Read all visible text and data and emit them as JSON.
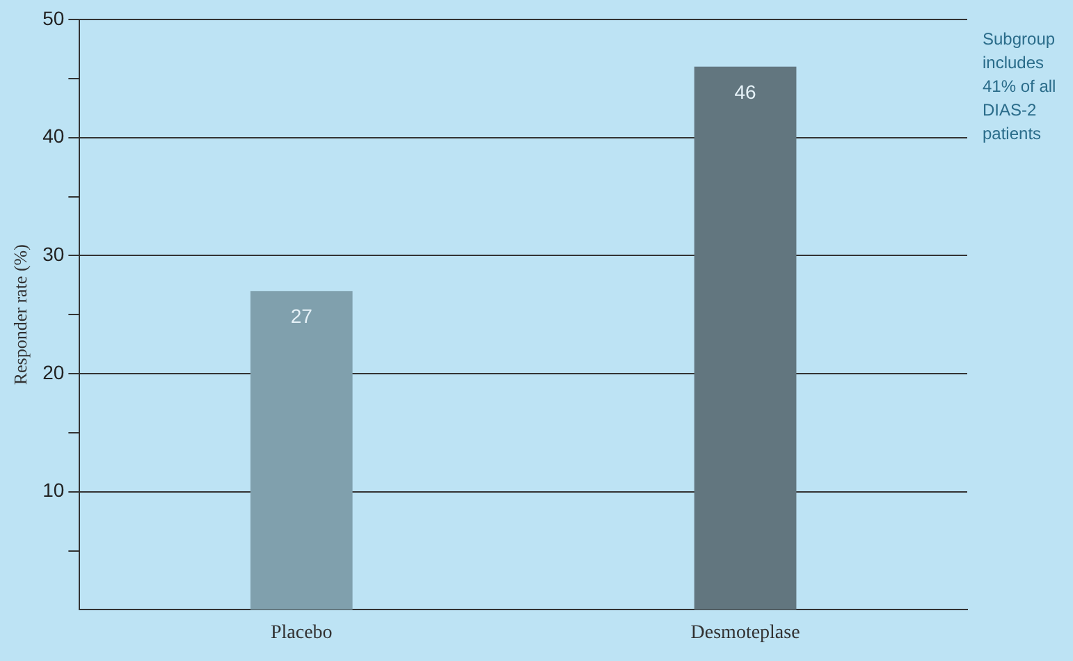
{
  "chart_data": {
    "type": "bar",
    "ylabel": "Responder rate (%)",
    "categories": [
      "Placebo",
      "Desmoteplase"
    ],
    "values": [
      27,
      46
    ],
    "colors": [
      "#80a0ad",
      "#62767f"
    ],
    "ylim": [
      0,
      50
    ],
    "yticks": [
      {
        "value": 5,
        "label": null
      },
      10,
      {
        "value": 15,
        "label": null
      },
      20,
      {
        "value": 25,
        "label": null
      },
      30,
      {
        "value": 35,
        "label": null
      },
      40,
      {
        "value": 45,
        "label": null
      },
      50
    ],
    "grid": "y",
    "data_labels": true,
    "legend": false,
    "annotations": [
      "Subgroup includes 41% of all DIAS-2 patients"
    ]
  }
}
